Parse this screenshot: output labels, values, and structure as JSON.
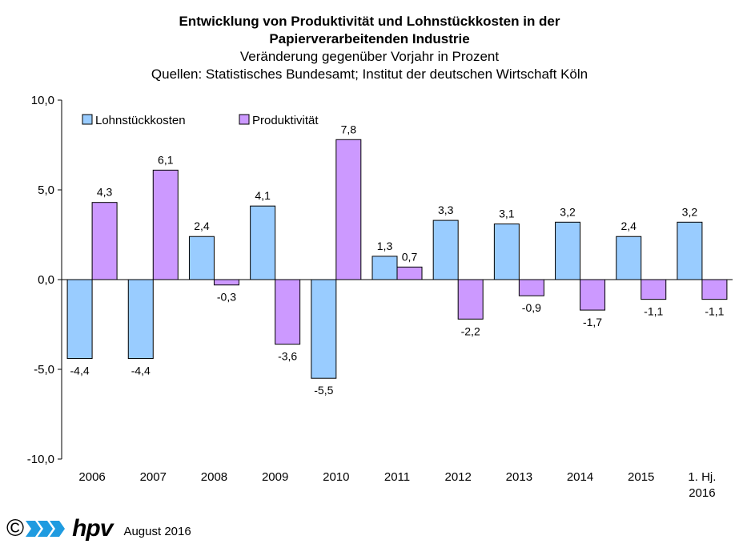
{
  "header": {
    "title": "Entwicklung von Produktivität und Lohnstückkosten in der Papierverarbeitenden Industrie",
    "subtitle": "Veränderung gegenüber Vorjahr in Prozent",
    "source": "Quellen: Statistisches Bundesamt; Institut der deutschen Wirtschaft Köln"
  },
  "footer": {
    "copyright": "©",
    "logo": "hpv",
    "date": "August 2016"
  },
  "chart_data": {
    "type": "bar",
    "categories": [
      "2006",
      "2007",
      "2008",
      "2009",
      "2010",
      "2011",
      "2012",
      "2013",
      "2014",
      "2015",
      "1. Hj. 2016"
    ],
    "series": [
      {
        "name": "Lohnstückkosten",
        "color": "#99ccff",
        "values": [
          -4.4,
          -4.4,
          2.4,
          4.1,
          -5.5,
          1.3,
          3.3,
          3.1,
          3.2,
          2.4,
          3.2
        ],
        "labels": [
          "-4,4",
          "-4,4",
          "2,4",
          "4,1",
          "-5,5",
          "1,3",
          "3,3",
          "3,1",
          "3,2",
          "2,4",
          "3,2"
        ]
      },
      {
        "name": "Produktivität",
        "color": "#cc99ff",
        "values": [
          4.3,
          6.1,
          -0.3,
          -3.6,
          7.8,
          0.7,
          -2.2,
          -0.9,
          -1.7,
          -1.1,
          -1.1
        ],
        "labels": [
          "4,3",
          "6,1",
          "-0,3",
          "-3,6",
          "7,8",
          "0,7",
          "-2,2",
          "-0,9",
          "-1,7",
          "-1,1",
          "-1,1"
        ]
      }
    ],
    "ylim": [
      -10,
      10
    ],
    "yticks": [
      10,
      5,
      0,
      -5,
      -10
    ],
    "ytick_labels": [
      "10,0",
      "5,0",
      "0,0",
      "-5,0",
      "-10,0"
    ],
    "grid": false,
    "legend": "top-left"
  }
}
